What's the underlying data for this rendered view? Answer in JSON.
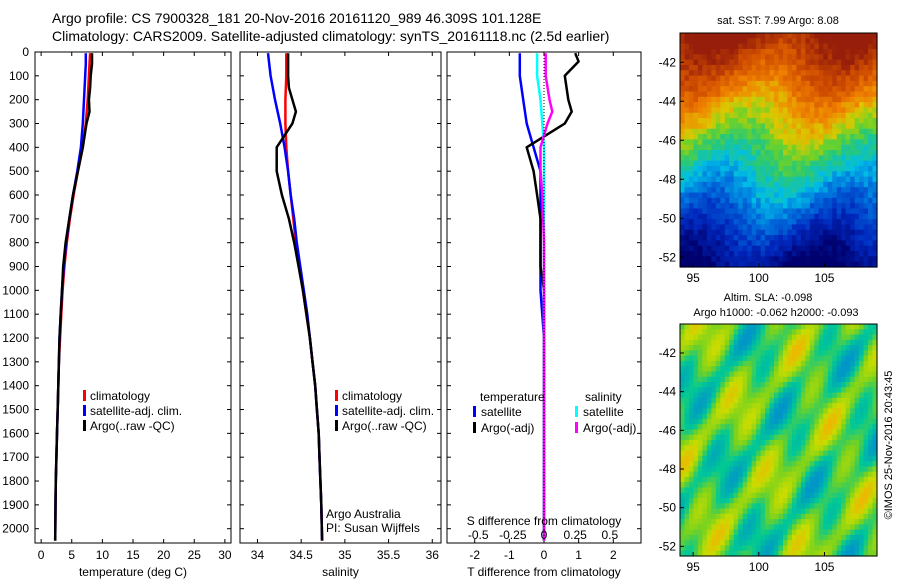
{
  "header": {
    "line1": "Argo profile: CS 7900328_181 20-Nov-2016 20161120_989 46.309S 101.128E",
    "line2": "Climatology: CARS2009. Satellite-adjusted climatology: synTS_20161118.nc (2.5d earlier)"
  },
  "colors": {
    "climatology": "#ff0000",
    "satellite": "#0000ff",
    "argo": "#000000",
    "sal_satellite": "#00ffff",
    "sal_argo": "#ff00ff"
  },
  "chart_data": [
    {
      "type": "line",
      "name": "temperature profile",
      "xlabel": "temperature (deg C)",
      "xlim": [
        -1,
        31
      ],
      "xticks": [
        0,
        5,
        10,
        15,
        20,
        25,
        30
      ],
      "ylim": [
        2060,
        0
      ],
      "yticks": [
        0,
        100,
        200,
        300,
        400,
        500,
        600,
        700,
        800,
        900,
        1000,
        1100,
        1200,
        1300,
        1400,
        1500,
        1600,
        1700,
        1800,
        1900,
        2000
      ],
      "legend": [
        "climatology",
        "satellite-adj. clim.",
        "Argo(..raw -QC)"
      ],
      "series": [
        {
          "name": "climatology",
          "color": "#ff0000",
          "points": [
            [
              8.0,
              5
            ],
            [
              7.9,
              50
            ],
            [
              7.8,
              100
            ],
            [
              7.6,
              200
            ],
            [
              7.3,
              300
            ],
            [
              6.8,
              400
            ],
            [
              6.0,
              500
            ],
            [
              5.3,
              600
            ],
            [
              4.7,
              700
            ],
            [
              4.2,
              800
            ],
            [
              3.8,
              900
            ],
            [
              3.5,
              1000
            ],
            [
              3.3,
              1100
            ],
            [
              3.1,
              1200
            ],
            [
              2.9,
              1300
            ],
            [
              2.8,
              1400
            ],
            [
              2.7,
              1500
            ],
            [
              2.6,
              1600
            ],
            [
              2.5,
              1700
            ],
            [
              2.4,
              1800
            ],
            [
              2.35,
              1900
            ],
            [
              2.3,
              2050
            ]
          ]
        },
        {
          "name": "satellite-adj. clim.",
          "color": "#0000ff",
          "points": [
            [
              7.3,
              5
            ],
            [
              7.3,
              50
            ],
            [
              7.2,
              100
            ],
            [
              7.0,
              200
            ],
            [
              6.8,
              300
            ],
            [
              6.5,
              400
            ],
            [
              5.9,
              500
            ],
            [
              5.2,
              600
            ],
            [
              4.6,
              700
            ],
            [
              4.1,
              800
            ],
            [
              3.7,
              900
            ],
            [
              3.4,
              1000
            ],
            [
              3.2,
              1100
            ],
            [
              3.0,
              1200
            ],
            [
              2.9,
              1300
            ],
            [
              2.8,
              1400
            ],
            [
              2.7,
              1500
            ],
            [
              2.6,
              1600
            ],
            [
              2.5,
              1700
            ],
            [
              2.4,
              1800
            ],
            [
              2.35,
              1900
            ],
            [
              2.3,
              2050
            ]
          ]
        },
        {
          "name": "Argo(..raw -QC)",
          "color": "#000000",
          "points": [
            [
              8.3,
              5
            ],
            [
              8.3,
              50
            ],
            [
              8.1,
              100
            ],
            [
              8.0,
              150
            ],
            [
              7.8,
              200
            ],
            [
              7.9,
              250
            ],
            [
              7.4,
              300
            ],
            [
              6.8,
              400
            ],
            [
              6.0,
              500
            ],
            [
              5.2,
              600
            ],
            [
              4.6,
              700
            ],
            [
              4.0,
              800
            ],
            [
              3.6,
              900
            ],
            [
              3.4,
              1000
            ],
            [
              3.2,
              1100
            ],
            [
              3.0,
              1200
            ],
            [
              2.9,
              1300
            ],
            [
              2.8,
              1400
            ],
            [
              2.7,
              1500
            ],
            [
              2.6,
              1600
            ],
            [
              2.5,
              1700
            ],
            [
              2.4,
              1800
            ],
            [
              2.35,
              1900
            ],
            [
              2.3,
              2050
            ]
          ]
        }
      ]
    },
    {
      "type": "line",
      "name": "salinity profile",
      "xlabel": "salinity",
      "xlim": [
        33.8,
        36.1
      ],
      "xticks": [
        34,
        34.5,
        35,
        35.5,
        36
      ],
      "xticklabels": [
        "34",
        "34.5",
        "35",
        "35.5",
        "36"
      ],
      "ylim": [
        2060,
        0
      ],
      "legend": [
        "climatology",
        "satellite-adj. clim.",
        "Argo(..raw -QC)"
      ],
      "annotation": [
        "Argo Australia",
        "PI: Susan Wijffels"
      ],
      "series": [
        {
          "name": "climatology",
          "color": "#ff0000",
          "points": [
            [
              34.33,
              5
            ],
            [
              34.33,
              100
            ],
            [
              34.32,
              200
            ],
            [
              34.32,
              300
            ],
            [
              34.33,
              400
            ],
            [
              34.35,
              500
            ],
            [
              34.38,
              600
            ],
            [
              34.41,
              700
            ],
            [
              34.44,
              800
            ],
            [
              34.48,
              900
            ],
            [
              34.52,
              1000
            ],
            [
              34.56,
              1100
            ],
            [
              34.6,
              1200
            ],
            [
              34.63,
              1300
            ],
            [
              34.66,
              1400
            ],
            [
              34.68,
              1500
            ],
            [
              34.7,
              1600
            ],
            [
              34.71,
              1700
            ],
            [
              34.72,
              1800
            ],
            [
              34.73,
              1900
            ],
            [
              34.74,
              2050
            ]
          ]
        },
        {
          "name": "satellite-adj. clim.",
          "color": "#0000ff",
          "points": [
            [
              34.12,
              5
            ],
            [
              34.15,
              100
            ],
            [
              34.2,
              200
            ],
            [
              34.26,
              300
            ],
            [
              34.31,
              400
            ],
            [
              34.35,
              500
            ],
            [
              34.38,
              600
            ],
            [
              34.42,
              700
            ],
            [
              34.45,
              800
            ],
            [
              34.49,
              900
            ],
            [
              34.53,
              1000
            ],
            [
              34.57,
              1100
            ],
            [
              34.6,
              1200
            ],
            [
              34.63,
              1300
            ],
            [
              34.66,
              1400
            ],
            [
              34.68,
              1500
            ],
            [
              34.7,
              1600
            ],
            [
              34.71,
              1700
            ],
            [
              34.72,
              1800
            ],
            [
              34.73,
              1900
            ],
            [
              34.74,
              2050
            ]
          ]
        },
        {
          "name": "Argo(..raw -QC)",
          "color": "#000000",
          "points": [
            [
              34.35,
              5
            ],
            [
              34.35,
              100
            ],
            [
              34.36,
              150
            ],
            [
              34.4,
              200
            ],
            [
              34.44,
              250
            ],
            [
              34.4,
              300
            ],
            [
              34.22,
              400
            ],
            [
              34.22,
              500
            ],
            [
              34.28,
              600
            ],
            [
              34.36,
              700
            ],
            [
              34.42,
              800
            ],
            [
              34.47,
              900
            ],
            [
              34.52,
              1000
            ],
            [
              34.56,
              1100
            ],
            [
              34.6,
              1200
            ],
            [
              34.63,
              1300
            ],
            [
              34.66,
              1400
            ],
            [
              34.68,
              1500
            ],
            [
              34.7,
              1600
            ],
            [
              34.71,
              1700
            ],
            [
              34.72,
              1800
            ],
            [
              34.73,
              1900
            ],
            [
              34.74,
              2050
            ]
          ]
        }
      ]
    },
    {
      "type": "line",
      "name": "difference profile",
      "xlabel": "T difference from climatology",
      "xlim": [
        -2.8,
        2.8
      ],
      "xticks": [
        -2,
        -1,
        0,
        1,
        2
      ],
      "top_label": "S difference from climatology",
      "top_ticks": [
        "-0.5",
        "-0.25",
        "0",
        "0.25",
        "0.5"
      ],
      "ylim": [
        2060,
        0
      ],
      "legend_titles": [
        "temperature",
        "salinity"
      ],
      "legend": [
        "satellite",
        "Argo(-adj)",
        "satellite",
        "Argo(-adj)"
      ],
      "series": [
        {
          "name": "satellite",
          "group": "temperature",
          "color": "#0000ff",
          "points": [
            [
              -0.7,
              5
            ],
            [
              -0.7,
              100
            ],
            [
              -0.6,
              200
            ],
            [
              -0.5,
              300
            ],
            [
              -0.3,
              400
            ],
            [
              -0.1,
              500
            ],
            [
              -0.1,
              600
            ],
            [
              -0.1,
              700
            ],
            [
              -0.1,
              800
            ],
            [
              -0.1,
              900
            ],
            [
              -0.1,
              1000
            ],
            [
              0,
              1200
            ],
            [
              0,
              1500
            ],
            [
              0,
              2050
            ]
          ]
        },
        {
          "name": "Argo(-adj)",
          "group": "temperature",
          "color": "#000000",
          "points": [
            [
              0.9,
              5
            ],
            [
              1.0,
              40
            ],
            [
              0.6,
              100
            ],
            [
              0.7,
              200
            ],
            [
              0.8,
              250
            ],
            [
              0.6,
              300
            ],
            [
              -0.5,
              400
            ],
            [
              -0.3,
              500
            ],
            [
              -0.2,
              600
            ],
            [
              -0.1,
              700
            ],
            [
              -0.1,
              800
            ],
            [
              -0.1,
              900
            ],
            [
              0,
              1000
            ],
            [
              0,
              1100
            ],
            [
              0,
              1500
            ],
            [
              0,
              2050
            ]
          ]
        },
        {
          "name": "satellite",
          "group": "salinity",
          "color": "#00ffff",
          "points": [
            [
              -0.2,
              5
            ],
            [
              -0.2,
              100
            ],
            [
              -0.1,
              200
            ],
            [
              -0.05,
              300
            ],
            [
              0,
              400
            ],
            [
              0,
              600
            ],
            [
              0,
              1000
            ],
            [
              0,
              2050
            ]
          ]
        },
        {
          "name": "Argo(-adj)",
          "group": "salinity",
          "color": "#ff00ff",
          "points": [
            [
              0.05,
              5
            ],
            [
              0.05,
              100
            ],
            [
              0.16,
              200
            ],
            [
              0.24,
              250
            ],
            [
              0.1,
              300
            ],
            [
              -0.1,
              400
            ],
            [
              -0.1,
              500
            ],
            [
              -0.05,
              600
            ],
            [
              0,
              800
            ],
            [
              0,
              1000
            ],
            [
              0,
              2050
            ]
          ]
        }
      ]
    },
    {
      "type": "heatmap",
      "name": "satellite SST map",
      "title": "sat. SST: 7.99  Argo: 8.08",
      "xlim": [
        94,
        109
      ],
      "ylim": [
        -52.5,
        -40.5
      ],
      "xticks": [
        95,
        100,
        105
      ],
      "yticks": [
        -42,
        -44,
        -46,
        -48,
        -50,
        -52
      ],
      "float_position": [
        101.128,
        -46.309
      ]
    },
    {
      "type": "heatmap",
      "name": "altimetry SLA map",
      "title": "Altim. SLA: -0.098",
      "subtitle": "Argo h1000: -0.062  h2000: -0.093",
      "xlim": [
        94,
        109
      ],
      "ylim": [
        -52.5,
        -40.5
      ],
      "xticks": [
        95,
        100,
        105
      ],
      "yticks": [
        -42,
        -44,
        -46,
        -48,
        -50,
        -52
      ]
    }
  ],
  "credit": "©IMOS 25-Nov-2016 20:43:45"
}
